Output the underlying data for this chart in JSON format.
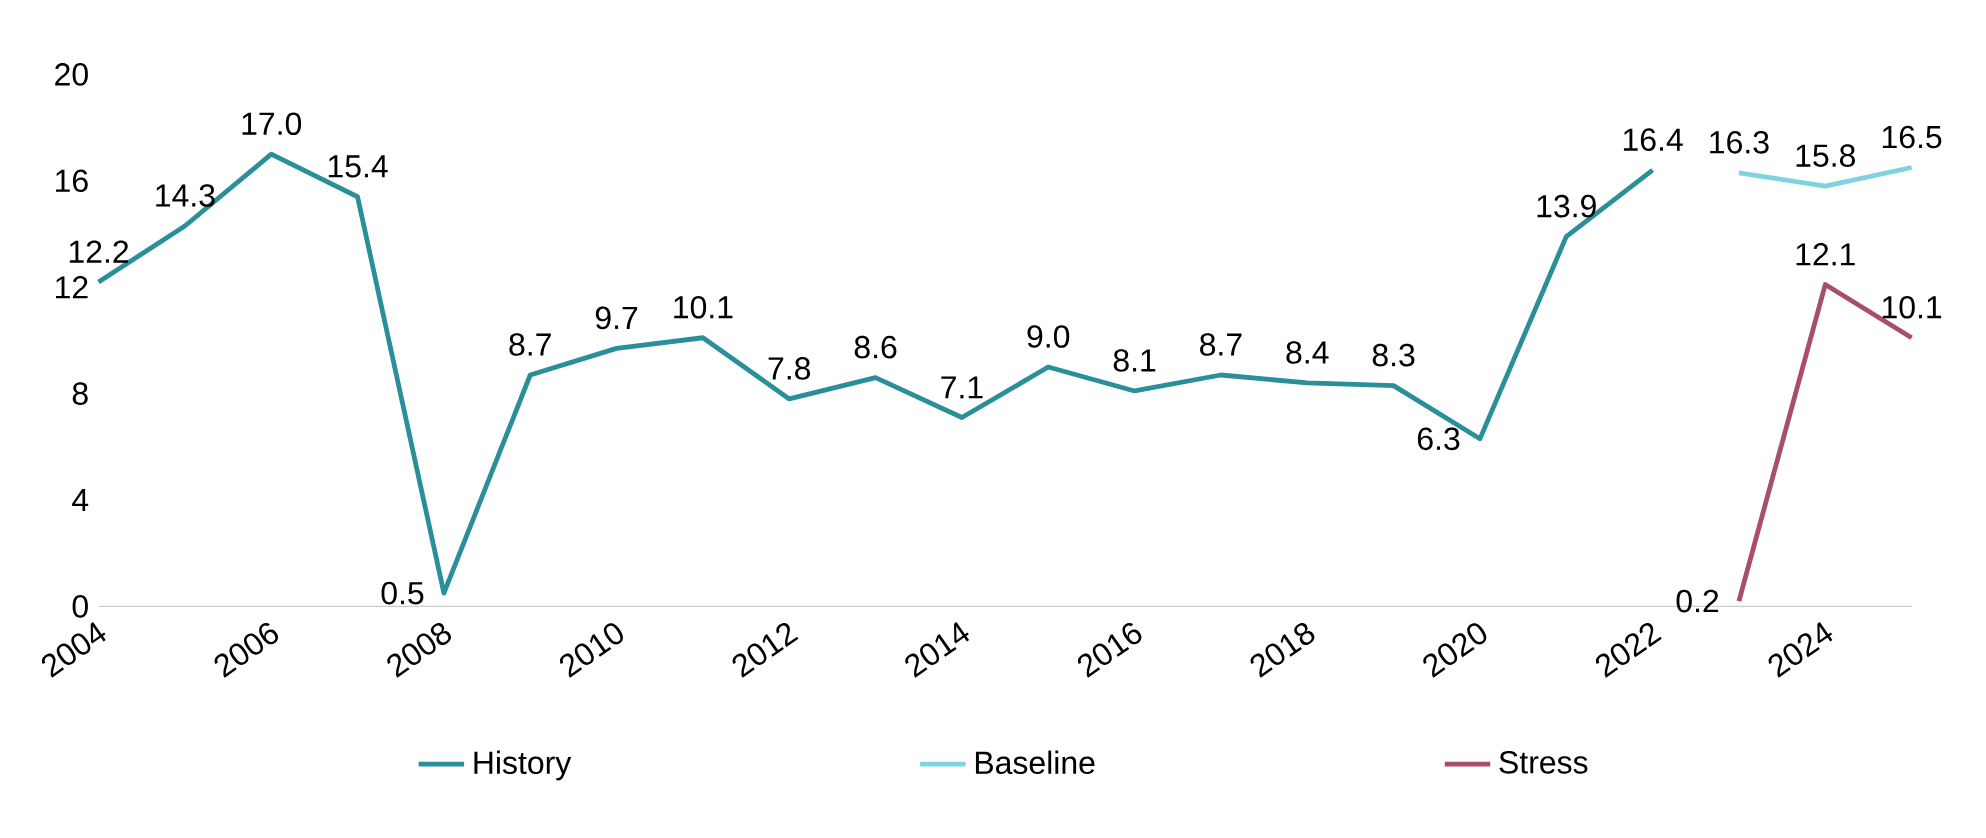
{
  "chart_data": {
    "type": "line",
    "xlim": [
      2004,
      2025
    ],
    "xticks": [
      2004,
      2006,
      2008,
      2010,
      2012,
      2014,
      2016,
      2018,
      2020,
      2022,
      2024
    ],
    "ylim": [
      0,
      20
    ],
    "yticks": [
      0,
      4,
      8,
      12,
      16,
      20
    ],
    "grid": false,
    "legend": "bottom",
    "line_style": "solid",
    "marker": "none",
    "series": [
      {
        "name": "History",
        "color": "#2a8f9a",
        "x": [
          2004,
          2005,
          2006,
          2007,
          2008,
          2009,
          2010,
          2011,
          2012,
          2013,
          2014,
          2015,
          2016,
          2017,
          2018,
          2019,
          2020,
          2021,
          2022
        ],
        "values": [
          12.2,
          14.3,
          17.0,
          15.4,
          0.5,
          8.7,
          9.7,
          10.1,
          7.8,
          8.6,
          7.1,
          9.0,
          8.1,
          8.7,
          8.4,
          8.3,
          6.3,
          13.9,
          16.4
        ],
        "value_labels": [
          "12.2",
          "14.3",
          "17.0",
          "15.4",
          "0.5",
          "8.7",
          "9.7",
          "10.1",
          "7.8",
          "8.6",
          "7.1",
          "9.0",
          "8.1",
          "8.7",
          "8.4",
          "8.3",
          "6.3",
          "13.9",
          "16.4"
        ]
      },
      {
        "name": "Baseline",
        "color": "#7fd3e0",
        "x": [
          2023,
          2024,
          2025
        ],
        "values": [
          16.3,
          15.8,
          16.5
        ],
        "value_labels": [
          "16.3",
          "15.8",
          "16.5"
        ]
      },
      {
        "name": "Stress",
        "color": "#a84d6b",
        "x": [
          2023,
          2024,
          2025
        ],
        "values": [
          0.2,
          12.1,
          10.1
        ],
        "value_labels": [
          "0.2",
          "12.1",
          "10.1"
        ]
      }
    ]
  }
}
